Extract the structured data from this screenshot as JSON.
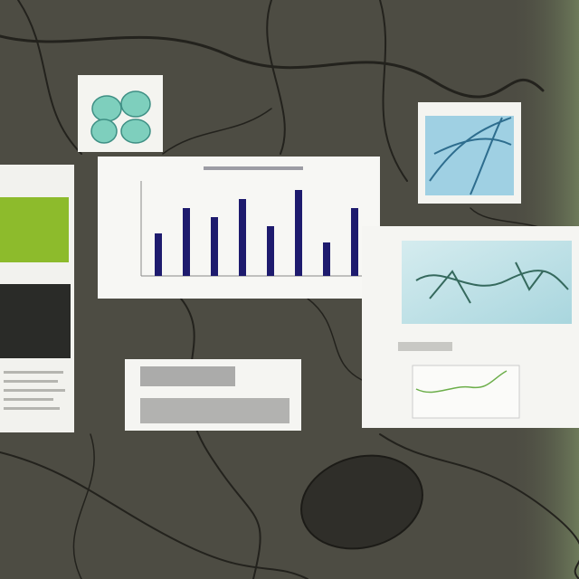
{
  "bar_chart": {
    "type": "bar",
    "values": [
      47,
      75,
      65,
      85,
      55,
      95,
      37,
      75
    ],
    "color": "#1e1b6e"
  }
}
